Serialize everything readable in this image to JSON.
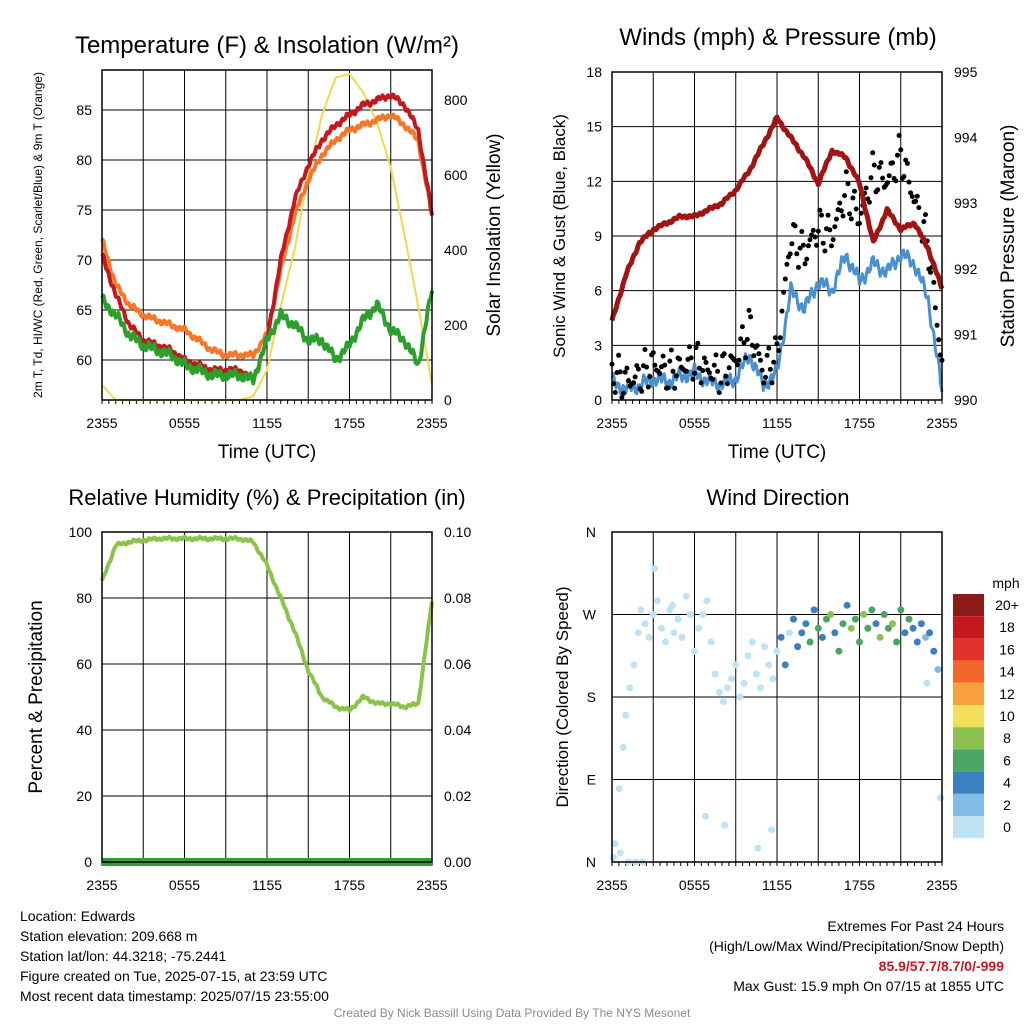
{
  "colors": {
    "temp": "#c3181e",
    "heat_index": "#2ca02c",
    "temp9m": "#f4772a",
    "insolation": "#f2d84b",
    "wind": "#4a90cf",
    "gust": "#000000",
    "pressure": "#a11414",
    "rh": "#8bc34a",
    "precip": "#2e9e3a"
  },
  "chart_data": [
    {
      "type": "line",
      "title": "Temperature (F) & Insolation (W/m²)",
      "xlabel": "Time (UTC)",
      "ylabel": "2m T, Td, HI/WC (Red, Green, Scarlet/Blue) & 9m T (Orange)",
      "ylabel_right": "Solar Insolation (Yellow)",
      "x_ticks": [
        "2355",
        "0555",
        "1155",
        "1755",
        "2355"
      ],
      "ylim": [
        56,
        89
      ],
      "y_ticks": [
        60,
        65,
        70,
        75,
        80,
        85
      ],
      "ylim_right": [
        0,
        880
      ],
      "y_ticks_right": [
        0,
        200,
        400,
        600,
        800
      ],
      "x_hours": [
        0,
        1,
        2,
        3,
        4,
        5,
        6,
        7,
        8,
        9,
        10,
        11,
        12,
        13,
        14,
        15,
        16,
        17,
        18,
        19,
        20,
        21,
        22,
        23,
        24
      ],
      "series": [
        {
          "name": "2m T",
          "color_key": "temp",
          "values": [
            70.5,
            66.5,
            63.5,
            62,
            61.5,
            61,
            60,
            59.5,
            59,
            59,
            59,
            58,
            62,
            70,
            76,
            79.5,
            82,
            83.5,
            84.5,
            85.5,
            86,
            86.5,
            85.5,
            83,
            74.5
          ]
        },
        {
          "name": "HI/WC",
          "color_key": "heat_index",
          "values": [
            66,
            64.5,
            62.5,
            61.5,
            61,
            60.5,
            59.5,
            59,
            58.5,
            58.5,
            58.5,
            58,
            62,
            64.5,
            63.5,
            62,
            62,
            60,
            61.5,
            64,
            65.5,
            63,
            62,
            59.5,
            67
          ]
        },
        {
          "name": "9m T",
          "color_key": "temp9m",
          "values": [
            72,
            67.5,
            65.5,
            64.5,
            64,
            63.5,
            63,
            62,
            61,
            60.5,
            60.5,
            60.5,
            62.5,
            69,
            74.5,
            78,
            80.5,
            82,
            83,
            83.5,
            84,
            84.5,
            83.5,
            82,
            74.5
          ]
        },
        {
          "name": "Solar Insolation",
          "color_key": "insolation",
          "axis": "right",
          "values": [
            40,
            0,
            0,
            0,
            0,
            0,
            0,
            0,
            0,
            0,
            0,
            10,
            80,
            250,
            400,
            600,
            760,
            860,
            870,
            820,
            740,
            620,
            440,
            250,
            40
          ]
        }
      ]
    },
    {
      "type": "line",
      "title": "Winds (mph) & Pressure (mb)",
      "xlabel": "Time (UTC)",
      "ylabel": "Sonic Wind & Gust (Blue, Black)",
      "ylabel_right": "Station Pressure (Maroon)",
      "x_ticks": [
        "2355",
        "0555",
        "1155",
        "1755",
        "2355"
      ],
      "ylim": [
        0,
        18
      ],
      "y_ticks": [
        0,
        3,
        6,
        9,
        12,
        15,
        18
      ],
      "ylim_right": [
        990,
        995
      ],
      "y_ticks_right": [
        990,
        991,
        992,
        993,
        994,
        995
      ],
      "x_hours": [
        0,
        1,
        2,
        3,
        4,
        5,
        6,
        7,
        8,
        9,
        10,
        11,
        12,
        13,
        14,
        15,
        16,
        17,
        18,
        19,
        20,
        21,
        22,
        23,
        24
      ],
      "series": [
        {
          "name": "Sonic Wind",
          "color_key": "wind",
          "values": [
            1,
            0.6,
            0.8,
            1.2,
            1.0,
            1.3,
            1.5,
            1.0,
            0.9,
            1.2,
            2.5,
            0.8,
            1.5,
            6,
            5,
            6.5,
            6,
            8,
            6.5,
            7.5,
            7,
            8,
            7.5,
            5.5,
            0.5
          ]
        },
        {
          "name": "Gust",
          "color_key": "gust",
          "values": [
            1.5,
            1,
            1.3,
            2,
            1.5,
            1.8,
            2.2,
            1.6,
            1.5,
            2.2,
            4,
            1.5,
            2.5,
            9,
            8,
            9.5,
            9,
            11.5,
            10,
            12.5,
            12,
            13.5,
            11,
            8.5,
            2
          ]
        },
        {
          "name": "Station Pressure",
          "color_key": "pressure",
          "axis": "right",
          "values": [
            991.2,
            991.9,
            992.4,
            992.6,
            992.7,
            992.8,
            992.8,
            992.9,
            993.0,
            993.2,
            993.5,
            993.9,
            994.3,
            994.0,
            993.7,
            993.3,
            993.8,
            993.7,
            993.3,
            992.4,
            992.9,
            992.6,
            992.7,
            992.3,
            991.7
          ]
        }
      ]
    },
    {
      "type": "line",
      "title": "Relative Humidity (%) & Precipitation (in)",
      "ylabel": "Percent & Precipitation",
      "x_ticks": [
        "2355",
        "0555",
        "1155",
        "1755",
        "2355"
      ],
      "ylim": [
        0,
        100
      ],
      "y_ticks": [
        0,
        20,
        40,
        60,
        80,
        100
      ],
      "ylim_right": [
        0,
        0.1
      ],
      "y_ticks_right": [
        "0.00",
        "0.02",
        "0.04",
        "0.06",
        "0.08",
        "0.10"
      ],
      "x_hours": [
        0,
        1,
        2,
        3,
        4,
        5,
        6,
        7,
        8,
        9,
        10,
        11,
        12,
        13,
        14,
        15,
        16,
        17,
        18,
        19,
        20,
        21,
        22,
        23,
        24
      ],
      "series": [
        {
          "name": "Relative Humidity",
          "color_key": "rh",
          "values": [
            85,
            96,
            97,
            97.5,
            98,
            98,
            98,
            98,
            98,
            98,
            98,
            97,
            90,
            80,
            70,
            58,
            50,
            47,
            46,
            50,
            48,
            48,
            47,
            48,
            79
          ]
        },
        {
          "name": "Precipitation",
          "color_key": "precip",
          "axis": "right",
          "values": [
            0,
            0,
            0,
            0,
            0,
            0,
            0,
            0,
            0,
            0,
            0,
            0,
            0,
            0,
            0,
            0,
            0,
            0,
            0,
            0,
            0,
            0,
            0,
            0,
            0
          ]
        }
      ]
    },
    {
      "type": "scatter",
      "title": "Wind Direction",
      "ylabel": "Direction (Colored By Speed)",
      "x_ticks": [
        "2355",
        "0555",
        "1155",
        "1755",
        "2355"
      ],
      "y_ticks": [
        "N",
        "E",
        "S",
        "W",
        "N"
      ],
      "ylim": [
        0,
        360
      ],
      "legend_title": "mph",
      "legend_labels": [
        "20+",
        "18",
        "16",
        "14",
        "12",
        "10",
        "8",
        "6",
        "4",
        "2",
        "0"
      ],
      "legend_colors": [
        "#8b1a1a",
        "#c3181e",
        "#e0342b",
        "#f4672a",
        "#f9a03f",
        "#f2e05a",
        "#8cc152",
        "#4aa564",
        "#3a7fbf",
        "#7fbde6",
        "#bde3f5"
      ],
      "x_hours": [
        0.2,
        0.5,
        0.8,
        1.0,
        1.3,
        1.6,
        1.9,
        2.1,
        2.4,
        2.7,
        3.0,
        3.3,
        3.6,
        3.9,
        4.2,
        4.5,
        4.8,
        5.1,
        5.4,
        5.7,
        6.0,
        6.3,
        6.6,
        6.9,
        7.2,
        7.5,
        7.8,
        8.1,
        8.4,
        8.7,
        9.0,
        9.3,
        9.6,
        9.9,
        10.2,
        10.5,
        10.8,
        11.1,
        11.4,
        11.7,
        12.0,
        12.3,
        12.6,
        12.9,
        13.2,
        13.5,
        13.8,
        14.1,
        14.4,
        14.7,
        15.0,
        15.3,
        15.6,
        15.9,
        16.2,
        16.5,
        16.8,
        17.1,
        17.4,
        17.7,
        18.0,
        18.3,
        18.6,
        18.9,
        19.2,
        19.5,
        19.8,
        20.1,
        20.4,
        20.7,
        21.0,
        21.3,
        21.6,
        21.9,
        22.2,
        22.5,
        22.8,
        23.1,
        23.4,
        23.7,
        0.1,
        0.6,
        1.2,
        1.7,
        2.2,
        3.1,
        4.4,
        6.8,
        8.2,
        10.6,
        11.6,
        22.9,
        23.9
      ],
      "directions": [
        20,
        80,
        125,
        160,
        190,
        215,
        250,
        275,
        260,
        245,
        270,
        285,
        255,
        240,
        275,
        250,
        265,
        245,
        290,
        270,
        230,
        255,
        270,
        285,
        240,
        205,
        185,
        175,
        190,
        200,
        215,
        180,
        195,
        225,
        240,
        205,
        190,
        235,
        215,
        200,
        230,
        245,
        215,
        250,
        265,
        235,
        250,
        260,
        240,
        275,
        255,
        245,
        265,
        270,
        250,
        230,
        260,
        280,
        255,
        265,
        240,
        270,
        255,
        275,
        260,
        245,
        270,
        255,
        260,
        240,
        275,
        250,
        265,
        255,
        240,
        260,
        245,
        250,
        230,
        210,
        5,
        10,
        0,
        0,
        0,
        320,
        280,
        50,
        40,
        15,
        35,
        195,
        70
      ],
      "speeds": [
        1,
        1,
        0.5,
        1,
        1,
        0.5,
        1,
        1,
        0.5,
        1,
        1,
        0.5,
        1,
        1,
        1,
        0.5,
        1,
        1,
        0.5,
        1,
        1,
        0.5,
        1,
        1,
        0.5,
        1,
        1,
        0.5,
        1,
        1,
        0.5,
        1,
        1,
        1,
        0.5,
        1,
        1,
        1,
        1,
        1.5,
        1,
        4,
        4,
        1.5,
        4,
        5,
        4,
        5,
        6,
        4,
        7,
        5,
        6,
        8,
        5,
        7,
        6,
        5,
        8,
        6,
        7,
        8,
        6,
        7,
        5,
        8,
        6,
        7,
        8,
        6,
        7,
        5,
        6,
        4,
        5,
        4,
        3.5,
        4,
        5,
        3,
        1,
        1,
        1,
        1,
        1,
        1,
        1,
        1,
        1,
        1,
        1,
        1,
        1
      ]
    }
  ],
  "info": {
    "location": "Location: Edwards",
    "elevation": "Station elevation: 209.668 m",
    "latlon": "Station lat/lon: 44.3218; -75.2441",
    "created": "Figure created on Tue, 2025-07-15, at 23:59 UTC",
    "timestamp": "Most recent data timestamp: 2025/07/15 23:55:00"
  },
  "extremes": {
    "title": "Extremes For Past 24 Hours",
    "subtitle": "(High/Low/Max Wind/Precipitation/Snow Depth)",
    "values": "85.9/57.7/8.7/0/-999",
    "max_gust": "Max Gust: 15.9 mph On 07/15 at 1855 UTC"
  },
  "credit": "Created By Nick Bassill Using Data Provided By The NYS Mesonet"
}
